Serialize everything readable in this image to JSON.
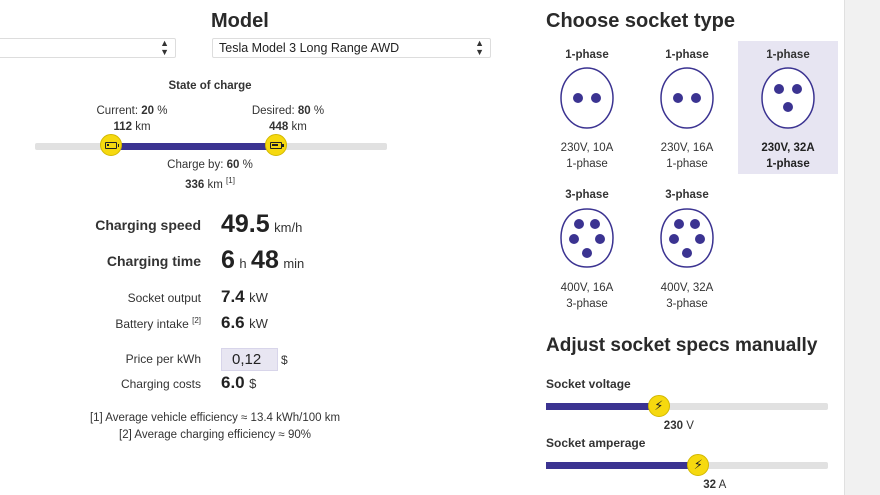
{
  "model": {
    "title": "Model",
    "make_select": {
      "value": ""
    },
    "model_select": {
      "value": "Tesla Model 3 Long Range AWD"
    }
  },
  "charge": {
    "title": "State of charge",
    "current": {
      "label": "Current:",
      "percent": "20",
      "pct_unit": "%",
      "km": "112",
      "km_unit": "km"
    },
    "desired": {
      "label": "Desired:",
      "percent": "80",
      "pct_unit": "%",
      "km": "448",
      "km_unit": "km"
    },
    "charge_by": {
      "label": "Charge by:",
      "percent": "60",
      "pct_unit": "%",
      "km": "336",
      "km_unit": "km",
      "note": "[1]"
    },
    "current_fraction": 0.2,
    "desired_fraction": 0.8
  },
  "results": {
    "speed": {
      "label": "Charging speed",
      "value": "49.5",
      "unit": "km/h"
    },
    "time": {
      "label": "Charging time",
      "hours": "6",
      "h_unit": "h",
      "minutes": "48",
      "m_unit": "min"
    },
    "socket_output": {
      "label": "Socket output",
      "value": "7.4",
      "unit": "kW"
    },
    "battery_intake": {
      "label": "Battery intake",
      "note": "[2]",
      "value": "6.6",
      "unit": "kW"
    },
    "price": {
      "label": "Price per kWh",
      "value": "0,12",
      "unit": "$"
    },
    "costs": {
      "label": "Charging costs",
      "value": "6.0",
      "unit": "$"
    }
  },
  "footnotes": [
    "[1] Average vehicle efficiency ≈ 13.4 kWh/100 km",
    "[2] Average charging efficiency ≈ 90%"
  ],
  "sockets": {
    "title": "Choose socket type",
    "items": [
      {
        "phase": "1-phase",
        "spec": "230V, 10A",
        "phase_sub": "1-phase",
        "pins": 2,
        "selected": false
      },
      {
        "phase": "1-phase",
        "spec": "230V, 16A",
        "phase_sub": "1-phase",
        "pins": 2,
        "selected": false
      },
      {
        "phase": "1-phase",
        "spec": "230V, 32A",
        "phase_sub": "1-phase",
        "pins": 3,
        "selected": true
      },
      {
        "phase": "3-phase",
        "spec": "400V, 16A",
        "phase_sub": "3-phase",
        "pins": 5,
        "selected": false
      },
      {
        "phase": "3-phase",
        "spec": "400V, 32A",
        "phase_sub": "3-phase",
        "pins": 5,
        "selected": false
      }
    ]
  },
  "manual": {
    "title": "Adjust socket specs manually",
    "voltage": {
      "label": "Socket voltage",
      "value": "230",
      "unit": "V",
      "fraction": 0.4
    },
    "amperage": {
      "label": "Socket amperage",
      "value": "32",
      "unit": "A",
      "fraction": 0.54
    }
  },
  "colors": {
    "accent": "#3b3391",
    "knob": "#f6d90f",
    "selected_bg": "#e7e5f2"
  },
  "icons": {
    "battery": "battery-icon",
    "bolt": "lightning-bolt-icon",
    "socket": "socket-icon"
  }
}
